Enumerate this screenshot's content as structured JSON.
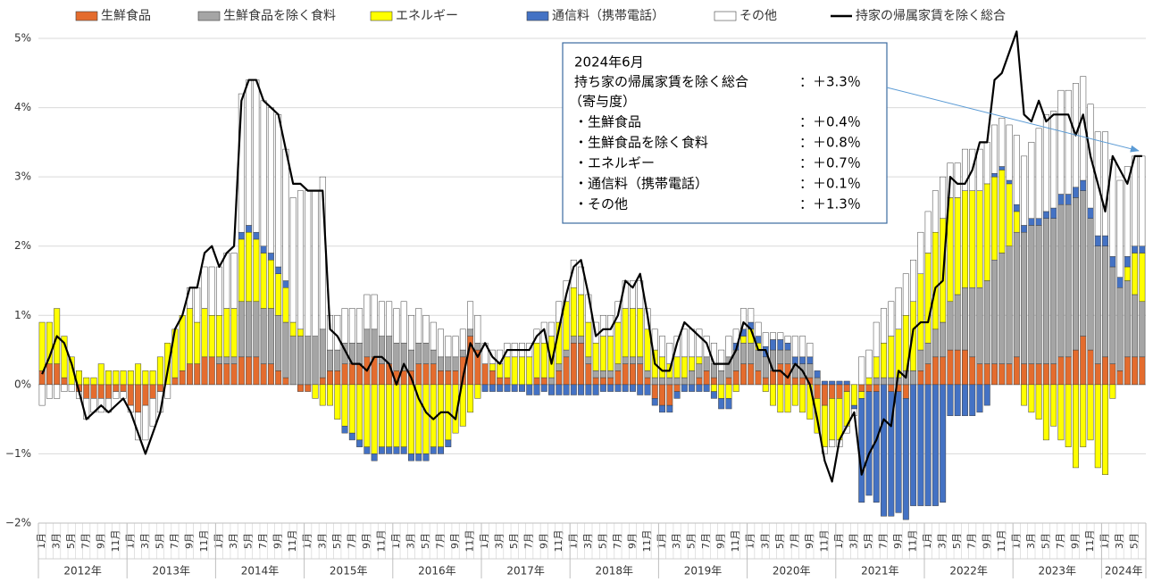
{
  "chart_data": {
    "type": "bar",
    "stacked": true,
    "ylim": [
      -2,
      5
    ],
    "yticks": [
      {
        "value": -2,
        "label": "−2%"
      },
      {
        "value": -1,
        "label": "−1%"
      },
      {
        "value": 0,
        "label": "0%"
      },
      {
        "value": 1,
        "label": "1%"
      },
      {
        "value": 2,
        "label": "2%"
      },
      {
        "value": 3,
        "label": "3%"
      },
      {
        "value": 4,
        "label": "4%"
      },
      {
        "value": 5,
        "label": "5%"
      }
    ],
    "grid": true,
    "legend": "top",
    "categories": [
      "1月",
      null,
      "3月",
      null,
      "5月",
      null,
      "7月",
      null,
      "9月",
      null,
      "11月",
      null,
      "1月",
      null,
      "3月",
      null,
      "5月",
      null,
      "7月",
      null,
      "9月",
      null,
      "11月",
      null,
      "1月",
      null,
      "3月",
      null,
      "5月",
      null,
      "7月",
      null,
      "9月",
      null,
      "11月",
      null,
      "1月",
      null,
      "3月",
      null,
      "5月",
      null,
      "7月",
      null,
      "9月",
      null,
      "11月",
      null,
      "1月",
      null,
      "3月",
      null,
      "5月",
      null,
      "7月",
      null,
      "9月",
      null,
      "11月",
      null,
      "1月",
      null,
      "3月",
      null,
      "5月",
      null,
      "7月",
      null,
      "9月",
      null,
      "11月",
      null,
      "1月",
      null,
      "3月",
      null,
      "5月",
      null,
      "7月",
      null,
      "9月",
      null,
      "11月",
      null,
      "1月",
      null,
      "3月",
      null,
      "5月",
      null,
      "7月",
      null,
      "9月",
      null,
      "11月",
      null,
      "1月",
      null,
      "3月",
      null,
      "5月",
      null,
      "7月",
      null,
      "9月",
      null,
      "11月",
      null,
      "1月",
      null,
      "3月",
      null,
      "5月",
      null,
      "7月",
      null,
      "9月",
      null,
      "11月",
      null,
      "1月",
      null,
      "3月",
      null,
      "5月",
      null,
      "7月",
      null,
      "9月",
      null,
      "11月",
      null,
      "1月",
      null,
      "3月",
      null,
      "5月",
      null,
      "7月",
      null,
      "9月",
      null,
      "11月",
      null,
      "1月",
      null,
      "3月",
      null,
      "5月",
      null
    ],
    "years": [
      "2012年",
      "2013年",
      "2014年",
      "2015年",
      "2016年",
      "2017年",
      "2018年",
      "2019年",
      "2020年",
      "2021年",
      "2022年",
      "2023年",
      "2024年"
    ],
    "series": [
      {
        "name": "生鮮食品",
        "type": "bar",
        "color": "#e46c2e",
        "values": [
          0.2,
          0.3,
          0.3,
          0.1,
          0.0,
          -0.1,
          -0.2,
          -0.2,
          -0.2,
          -0.2,
          -0.1,
          -0.1,
          -0.3,
          -0.4,
          -0.3,
          -0.2,
          -0.1,
          0.0,
          0.1,
          0.2,
          0.3,
          0.3,
          0.4,
          0.4,
          0.3,
          0.3,
          0.3,
          0.4,
          0.4,
          0.4,
          0.3,
          0.3,
          0.2,
          0.1,
          0.0,
          -0.1,
          -0.1,
          0.0,
          0.1,
          0.2,
          0.2,
          0.3,
          0.3,
          0.3,
          0.4,
          0.4,
          0.3,
          0.3,
          0.2,
          0.2,
          0.2,
          0.3,
          0.3,
          0.3,
          0.2,
          0.2,
          0.2,
          0.4,
          0.7,
          0.5,
          0.3,
          0.2,
          0.1,
          0.1,
          0.0,
          0.0,
          0.0,
          0.1,
          0.1,
          0.0,
          0.2,
          0.4,
          0.6,
          0.6,
          0.3,
          0.1,
          0.1,
          0.1,
          0.2,
          0.3,
          0.3,
          0.3,
          0.1,
          -0.2,
          -0.3,
          -0.3,
          -0.1,
          0.0,
          0.0,
          0.1,
          0.2,
          0.1,
          0.0,
          0.1,
          0.2,
          0.3,
          0.3,
          0.2,
          0.1,
          0.2,
          0.3,
          0.3,
          0.1,
          0.1,
          0.1,
          -0.2,
          -0.3,
          -0.2,
          -0.2,
          -0.1,
          0.0,
          -0.1,
          -0.1,
          -0.1,
          0.0,
          -0.1,
          -0.1,
          -0.2,
          0.0,
          0.2,
          0.3,
          0.4,
          0.4,
          0.5,
          0.5,
          0.5,
          0.4,
          0.3,
          0.3,
          0.3,
          0.3,
          0.3,
          0.4,
          0.3,
          0.3,
          0.3,
          0.3,
          0.3,
          0.4,
          0.4,
          0.5,
          0.7,
          0.5,
          0.3,
          0.4,
          0.3,
          0.2,
          0.4,
          0.4,
          0.4
        ]
      },
      {
        "name": "生鮮食品を除く食料",
        "type": "bar",
        "color": "#a5a5a5",
        "values": [
          0.0,
          0.0,
          0.0,
          0.0,
          0.0,
          0.0,
          0.0,
          0.0,
          0.0,
          0.0,
          0.0,
          0.0,
          0.0,
          0.0,
          0.0,
          0.0,
          0.0,
          0.0,
          0.0,
          0.0,
          0.0,
          0.0,
          0.0,
          0.0,
          0.1,
          0.1,
          0.1,
          0.8,
          0.8,
          0.8,
          0.8,
          0.8,
          0.8,
          0.8,
          0.7,
          0.7,
          0.7,
          0.7,
          0.7,
          0.3,
          0.3,
          0.3,
          0.3,
          0.3,
          0.4,
          0.4,
          0.4,
          0.4,
          0.4,
          0.4,
          0.3,
          0.3,
          0.3,
          0.2,
          0.2,
          0.2,
          0.2,
          0.1,
          0.1,
          0.1,
          0.0,
          0.0,
          0.0,
          0.0,
          0.0,
          0.0,
          0.0,
          0.0,
          0.0,
          0.1,
          0.1,
          0.1,
          0.1,
          0.1,
          0.1,
          0.1,
          0.1,
          0.1,
          0.1,
          0.1,
          0.1,
          0.1,
          0.1,
          0.1,
          0.1,
          0.1,
          0.1,
          0.1,
          0.2,
          0.2,
          0.2,
          0.2,
          0.2,
          0.3,
          0.3,
          0.3,
          0.3,
          0.3,
          0.3,
          0.3,
          0.2,
          0.2,
          0.2,
          0.2,
          0.2,
          0.1,
          0.0,
          0.0,
          0.0,
          0.0,
          0.0,
          0.0,
          0.0,
          0.1,
          0.1,
          0.1,
          0.1,
          0.2,
          0.2,
          0.3,
          0.3,
          0.4,
          0.5,
          0.7,
          0.8,
          0.9,
          1.0,
          1.1,
          1.2,
          1.5,
          1.6,
          1.7,
          1.8,
          1.9,
          2.0,
          2.0,
          2.1,
          2.1,
          2.2,
          2.2,
          2.2,
          2.1,
          1.9,
          1.7,
          1.6,
          1.4,
          1.2,
          1.1,
          0.9,
          0.8
        ]
      },
      {
        "name": "エネルギー",
        "type": "bar",
        "color": "#ffff00",
        "values": [
          0.7,
          0.6,
          0.8,
          0.6,
          0.4,
          0.2,
          0.1,
          0.1,
          0.3,
          0.2,
          0.2,
          0.2,
          0.2,
          0.3,
          0.2,
          0.2,
          0.4,
          0.6,
          0.7,
          0.8,
          0.8,
          0.6,
          0.7,
          0.6,
          0.6,
          0.7,
          0.7,
          0.9,
          1.0,
          0.9,
          0.8,
          0.7,
          0.6,
          0.5,
          0.2,
          0.1,
          0.0,
          -0.2,
          -0.3,
          -0.3,
          -0.5,
          -0.6,
          -0.7,
          -0.8,
          -0.9,
          -1.0,
          -0.9,
          -0.9,
          -0.9,
          -0.9,
          -1.0,
          -1.0,
          -1.0,
          -0.9,
          -0.9,
          -0.8,
          -0.7,
          -0.6,
          -0.4,
          -0.2,
          0.0,
          0.1,
          0.2,
          0.3,
          0.4,
          0.4,
          0.4,
          0.5,
          0.5,
          0.6,
          0.6,
          0.7,
          0.7,
          0.6,
          0.5,
          0.4,
          0.5,
          0.5,
          0.6,
          0.7,
          0.7,
          0.7,
          0.6,
          0.4,
          0.3,
          0.2,
          0.3,
          0.3,
          0.2,
          0.1,
          0.0,
          -0.1,
          -0.2,
          -0.2,
          -0.1,
          0.1,
          0.2,
          0.1,
          -0.1,
          -0.3,
          -0.4,
          -0.4,
          -0.3,
          -0.4,
          -0.5,
          -0.5,
          -0.6,
          -0.6,
          -0.6,
          -0.5,
          -0.3,
          -0.1,
          0.1,
          0.3,
          0.5,
          0.6,
          0.7,
          0.8,
          1.0,
          1.1,
          1.3,
          1.4,
          1.5,
          1.5,
          1.4,
          1.4,
          1.4,
          1.4,
          1.4,
          1.2,
          1.2,
          0.9,
          0.3,
          -0.3,
          -0.4,
          -0.5,
          -0.8,
          -0.6,
          -0.8,
          -0.9,
          -1.2,
          -0.9,
          -0.8,
          -1.2,
          -1.3,
          -0.2,
          0.0,
          0.2,
          0.6,
          0.7
        ]
      },
      {
        "name": "通信料（携帯電話）",
        "type": "bar",
        "color": "#4472c4",
        "values": [
          0,
          0,
          0,
          0,
          0,
          0,
          0,
          0,
          0,
          0,
          0,
          0,
          0,
          0,
          0,
          0,
          0,
          0,
          0,
          0,
          0,
          0,
          0,
          0,
          0,
          0,
          0,
          0.1,
          0.1,
          0.1,
          0.1,
          0.1,
          0.1,
          0.1,
          0,
          0,
          0,
          0,
          0,
          0,
          0,
          -0.1,
          -0.1,
          -0.1,
          -0.1,
          -0.1,
          -0.1,
          -0.1,
          -0.1,
          -0.1,
          -0.1,
          -0.1,
          -0.1,
          -0.1,
          -0.1,
          -0.1,
          0,
          0,
          0,
          0,
          -0.1,
          -0.1,
          -0.1,
          -0.1,
          -0.1,
          -0.1,
          -0.15,
          -0.15,
          -0.1,
          -0.15,
          -0.15,
          -0.15,
          -0.15,
          -0.15,
          -0.15,
          -0.15,
          -0.1,
          -0.1,
          -0.1,
          -0.1,
          -0.1,
          -0.15,
          -0.15,
          -0.1,
          -0.1,
          -0.1,
          -0.1,
          -0.1,
          -0.1,
          -0.1,
          -0.1,
          -0.1,
          -0.15,
          -0.15,
          0.1,
          0.1,
          0.1,
          0.1,
          0.15,
          0.15,
          0.15,
          0.1,
          0.1,
          0.1,
          0.1,
          0.1,
          0.05,
          0.05,
          0.05,
          0.05,
          -0.05,
          -1.5,
          -1.5,
          -1.6,
          -1.9,
          -1.8,
          -1.75,
          -1.75,
          -1.75,
          -1.75,
          -1.75,
          -1.75,
          -1.7,
          -0.45,
          -0.45,
          -0.45,
          -0.45,
          -0.4,
          -0.3,
          0.05,
          0.05,
          0.05,
          0.1,
          0.1,
          0.1,
          0.1,
          0.1,
          0.15,
          0.15,
          0.15,
          0.15,
          0.15,
          0.15,
          0.15,
          0.15,
          0.15,
          0.15,
          0.15,
          0.1,
          0.1
        ]
      },
      {
        "name": "その他",
        "type": "bar",
        "color": "#ffffff",
        "values": [
          -0.3,
          -0.2,
          -0.2,
          -0.1,
          -0.1,
          -0.1,
          -0.3,
          -0.2,
          -0.2,
          -0.2,
          -0.1,
          -0.1,
          -0.1,
          -0.4,
          -0.5,
          -0.4,
          -0.3,
          -0.2,
          0.0,
          0.0,
          0.3,
          0.5,
          0.6,
          0.7,
          0.7,
          0.8,
          0.8,
          2.0,
          2.1,
          2.2,
          2.1,
          2.1,
          2.2,
          1.9,
          1.8,
          2.0,
          2.1,
          2.1,
          2.2,
          0.5,
          0.5,
          0.5,
          0.5,
          0.5,
          0.5,
          0.5,
          0.5,
          0.5,
          0.5,
          0.6,
          0.5,
          0.5,
          0.4,
          0.4,
          0.4,
          0.3,
          0.3,
          0.3,
          0.4,
          0.4,
          0.3,
          0.2,
          0.2,
          0.2,
          0.2,
          0.2,
          0.2,
          0.2,
          0.3,
          0.2,
          0.3,
          0.3,
          0.4,
          0.4,
          0.4,
          0.3,
          0.3,
          0.3,
          0.3,
          0.4,
          0.4,
          0.4,
          0.3,
          0.3,
          0.3,
          0.3,
          0.3,
          0.4,
          0.4,
          0.4,
          0.3,
          0.3,
          0.3,
          0.3,
          0.2,
          0.3,
          0.2,
          0.2,
          0.2,
          0.1,
          0.1,
          0.1,
          0.3,
          0.3,
          0.2,
          0.0,
          -0.1,
          -0.1,
          -0.1,
          -0.1,
          -0.1,
          0.4,
          0.4,
          0.5,
          0.5,
          0.5,
          0.6,
          0.6,
          0.6,
          0.6,
          0.6,
          0.6,
          0.6,
          0.5,
          0.5,
          0.6,
          0.6,
          0.6,
          0.6,
          0.7,
          0.7,
          0.8,
          1.0,
          1.0,
          1.1,
          1.3,
          1.4,
          1.4,
          1.5,
          1.5,
          1.5,
          1.5,
          1.5,
          1.5,
          1.5,
          1.4,
          1.4,
          1.3,
          1.3,
          1.3
        ]
      },
      {
        "name": "持家の帰属家賃を除く総合",
        "type": "line",
        "color": "#000000",
        "values": [
          0.15,
          0.4,
          0.7,
          0.6,
          0.3,
          -0.1,
          -0.5,
          -0.4,
          -0.3,
          -0.4,
          -0.3,
          -0.2,
          -0.4,
          -0.7,
          -1.0,
          -0.7,
          -0.4,
          0.2,
          0.8,
          1.0,
          1.4,
          1.4,
          1.9,
          2.0,
          1.7,
          1.9,
          2.0,
          4.1,
          4.4,
          4.4,
          4.1,
          4.0,
          3.9,
          3.4,
          2.9,
          2.9,
          2.8,
          2.8,
          2.8,
          0.8,
          0.7,
          0.5,
          0.3,
          0.3,
          0.2,
          0.4,
          0.4,
          0.3,
          0.0,
          0.3,
          0.1,
          -0.2,
          -0.4,
          -0.5,
          -0.4,
          -0.4,
          -0.5,
          0.1,
          0.6,
          0.4,
          0.6,
          0.4,
          0.3,
          0.5,
          0.5,
          0.5,
          0.5,
          0.7,
          0.8,
          0.3,
          0.8,
          1.3,
          1.7,
          1.8,
          1.3,
          0.7,
          0.8,
          0.8,
          1.0,
          1.5,
          1.4,
          1.6,
          1.0,
          0.3,
          0.2,
          0.2,
          0.6,
          0.9,
          0.8,
          0.7,
          0.6,
          0.3,
          0.3,
          0.3,
          0.5,
          0.9,
          0.8,
          0.5,
          0.5,
          0.2,
          0.2,
          0.1,
          0.3,
          0.2,
          0.0,
          -0.5,
          -1.1,
          -1.4,
          -0.8,
          -0.6,
          -0.4,
          -1.3,
          -1.0,
          -0.8,
          -0.5,
          -0.6,
          0.2,
          0.1,
          0.8,
          0.9,
          0.9,
          1.4,
          1.5,
          3.0,
          2.9,
          2.9,
          3.1,
          3.5,
          3.5,
          4.4,
          4.5,
          4.8,
          5.1,
          3.9,
          3.8,
          4.1,
          3.8,
          3.9,
          3.9,
          3.9,
          3.6,
          3.9,
          3.3,
          2.9,
          2.5,
          3.3,
          3.1,
          2.9,
          3.3,
          3.3
        ]
      }
    ],
    "annotation": {
      "title": "2024年6月",
      "headline": {
        "label": "持ち家の帰属家賃を除く総合",
        "value": "：＋3.3％"
      },
      "subheading": "（寄与度）",
      "items": [
        {
          "label": "・生鮮食品",
          "value": "：＋0.4％"
        },
        {
          "label": "・生鮮食品を除く食料",
          "value": "：＋0.8％"
        },
        {
          "label": "・エネルギー",
          "value": "：＋0.7％"
        },
        {
          "label": "・通信料（携帯電話）",
          "value": "：＋0.1％"
        },
        {
          "label": "・その他",
          "value": "：＋1.3％"
        }
      ]
    }
  }
}
